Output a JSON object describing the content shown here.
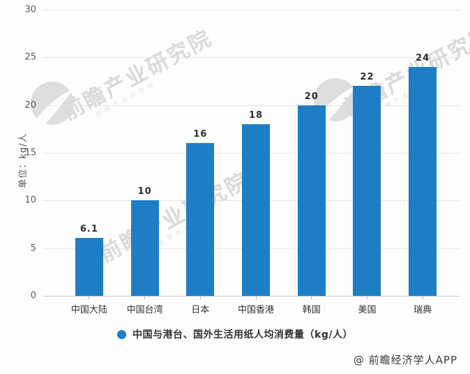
{
  "chart_data": {
    "type": "bar",
    "categories": [
      "中国大陆",
      "中国台湾",
      "日本",
      "中国香港",
      "韩国",
      "美国",
      "瑞典"
    ],
    "values": [
      6.1,
      10,
      16,
      18,
      20,
      22,
      24
    ],
    "legend_label": "中国与港台、国外生活用纸人均消费量（kg/人）",
    "ylabel": "单位：kg/人",
    "ylim": [
      0,
      30
    ],
    "yticks": [
      0,
      5,
      10,
      15,
      20,
      25,
      30
    ],
    "grid": true,
    "legend_position": "bottom",
    "bar_color": "#1d7ec6"
  },
  "watermark": {
    "text": "前瞻产业研究院",
    "icon": "globe-icon",
    "color": "#d9d9d9"
  },
  "footer": {
    "attribution": "@ 前瞻经济学人APP"
  }
}
